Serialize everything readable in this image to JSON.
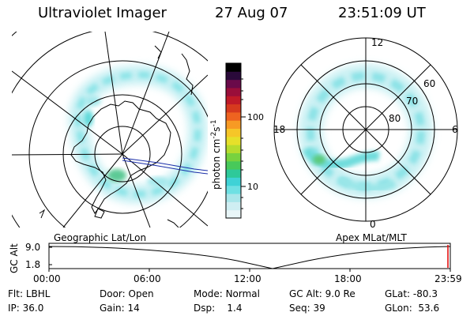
{
  "header": {
    "instrument": "Ultraviolet Imager",
    "date": "27 Aug 07",
    "time": "23:51:09 UT"
  },
  "left_panel": {
    "caption": "Geographic Lat/Lon"
  },
  "right_panel": {
    "caption": "Apex MLat/MLT",
    "mlt_labels": [
      "12",
      "18",
      "6",
      "0"
    ],
    "lat_labels": [
      "60",
      "70",
      "80"
    ]
  },
  "colorbar": {
    "label": "photon cm",
    "label_sup1": "-2",
    "label_mid": "s",
    "label_sup2": "-1",
    "ticks": [
      "100",
      "10"
    ],
    "scale": "log",
    "colors": [
      "#e9f6f8",
      "#cfeef2",
      "#a9e6ea",
      "#6ee0e3",
      "#3fd2d6",
      "#2ec99a",
      "#48c95a",
      "#78d23f",
      "#b6dc2e",
      "#e6e02a",
      "#f6c628",
      "#f79a24",
      "#ee6320",
      "#d63a1e",
      "#c01a28",
      "#9a0e3a",
      "#6a0a4a",
      "#2a0a3a",
      "#000000"
    ]
  },
  "timeline": {
    "y_label": "GC Alt",
    "y_ticks": [
      "9.0",
      "1.8"
    ],
    "x_ticks": [
      "00:00",
      "06:00",
      "12:00",
      "18:00",
      "23:59"
    ]
  },
  "status": {
    "row1": [
      {
        "label": "Flt:",
        "value": "LBHL"
      },
      {
        "label": "Door:",
        "value": "Open"
      },
      {
        "label": "Mode:",
        "value": "Normal"
      },
      {
        "label": "GC Alt:",
        "value": "9.0 Re"
      },
      {
        "label": "GLat:",
        "value": "-80.3"
      }
    ],
    "row2": [
      {
        "label": "IP:",
        "value": "36.0"
      },
      {
        "label": "Gain:",
        "value": "14"
      },
      {
        "label": "Dsp:",
        "value": "1.4"
      },
      {
        "label": "Seq:",
        "value": "39"
      },
      {
        "label": "GLon:",
        "value": "53.6"
      }
    ]
  }
}
